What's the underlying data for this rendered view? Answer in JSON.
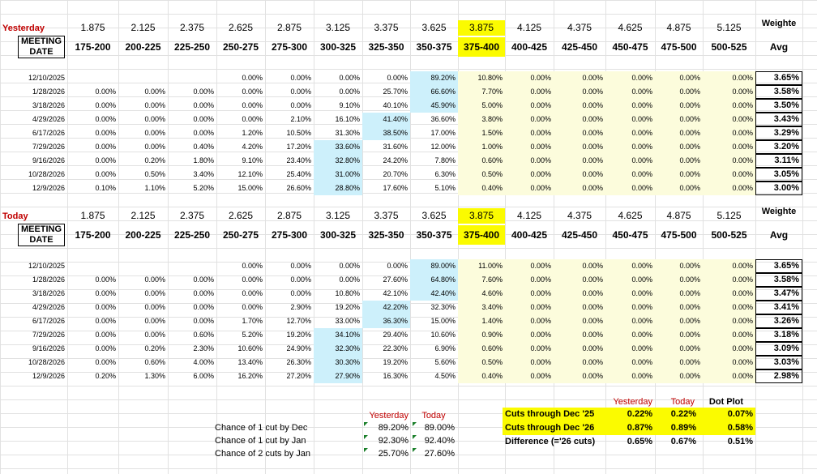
{
  "rates": [
    "1.875",
    "2.125",
    "2.375",
    "2.625",
    "2.875",
    "3.125",
    "3.375",
    "3.625",
    "3.875",
    "4.125",
    "4.375",
    "4.625",
    "4.875",
    "5.125"
  ],
  "ranges": [
    "175-200",
    "200-225",
    "225-250",
    "250-275",
    "275-300",
    "300-325",
    "325-350",
    "350-375",
    "375-400",
    "400-425",
    "425-450",
    "450-475",
    "475-500",
    "500-525"
  ],
  "header": {
    "meeting1": "MEETING",
    "meeting2": "DATE",
    "weight1": "Weighte",
    "weight2": "Avg"
  },
  "colors": {
    "yellow": "#fbfb00",
    "blue": "#cdf0fb",
    "cream": "#fcfcdc",
    "red": "#c00000"
  },
  "sections": [
    {
      "label": "Yesterday",
      "rows": [
        {
          "date": "12/10/2025",
          "vals": [
            "",
            "",
            "",
            "0.00%",
            "0.00%",
            "0.00%",
            "0.00%",
            "89.20%",
            "10.80%",
            "0.00%",
            "0.00%",
            "0.00%",
            "0.00%",
            "0.00%"
          ],
          "avg": "3.65%",
          "blue": 7
        },
        {
          "date": "1/28/2026",
          "vals": [
            "0.00%",
            "0.00%",
            "0.00%",
            "0.00%",
            "0.00%",
            "0.00%",
            "25.70%",
            "66.60%",
            "7.70%",
            "0.00%",
            "0.00%",
            "0.00%",
            "0.00%",
            "0.00%"
          ],
          "avg": "3.58%",
          "blue": 7
        },
        {
          "date": "3/18/2026",
          "vals": [
            "0.00%",
            "0.00%",
            "0.00%",
            "0.00%",
            "0.00%",
            "9.10%",
            "40.10%",
            "45.90%",
            "5.00%",
            "0.00%",
            "0.00%",
            "0.00%",
            "0.00%",
            "0.00%"
          ],
          "avg": "3.50%",
          "blue": 7
        },
        {
          "date": "4/29/2026",
          "vals": [
            "0.00%",
            "0.00%",
            "0.00%",
            "0.00%",
            "2.10%",
            "16.10%",
            "41.40%",
            "36.60%",
            "3.80%",
            "0.00%",
            "0.00%",
            "0.00%",
            "0.00%",
            "0.00%"
          ],
          "avg": "3.43%",
          "blue": 6
        },
        {
          "date": "6/17/2026",
          "vals": [
            "0.00%",
            "0.00%",
            "0.00%",
            "1.20%",
            "10.50%",
            "31.30%",
            "38.50%",
            "17.00%",
            "1.50%",
            "0.00%",
            "0.00%",
            "0.00%",
            "0.00%",
            "0.00%"
          ],
          "avg": "3.29%",
          "blue": 6
        },
        {
          "date": "7/29/2026",
          "vals": [
            "0.00%",
            "0.00%",
            "0.40%",
            "4.20%",
            "17.20%",
            "33.60%",
            "31.60%",
            "12.00%",
            "1.00%",
            "0.00%",
            "0.00%",
            "0.00%",
            "0.00%",
            "0.00%"
          ],
          "avg": "3.20%",
          "blue": 5
        },
        {
          "date": "9/16/2026",
          "vals": [
            "0.00%",
            "0.20%",
            "1.80%",
            "9.10%",
            "23.40%",
            "32.80%",
            "24.20%",
            "7.80%",
            "0.60%",
            "0.00%",
            "0.00%",
            "0.00%",
            "0.00%",
            "0.00%"
          ],
          "avg": "3.11%",
          "blue": 5
        },
        {
          "date": "10/28/2026",
          "vals": [
            "0.00%",
            "0.50%",
            "3.40%",
            "12.10%",
            "25.40%",
            "31.00%",
            "20.70%",
            "6.30%",
            "0.50%",
            "0.00%",
            "0.00%",
            "0.00%",
            "0.00%",
            "0.00%"
          ],
          "avg": "3.05%",
          "blue": 5
        },
        {
          "date": "12/9/2026",
          "vals": [
            "0.10%",
            "1.10%",
            "5.20%",
            "15.00%",
            "26.60%",
            "28.80%",
            "17.60%",
            "5.10%",
            "0.40%",
            "0.00%",
            "0.00%",
            "0.00%",
            "0.00%",
            "0.00%"
          ],
          "avg": "3.00%",
          "blue": 5
        }
      ]
    },
    {
      "label": "Today",
      "rows": [
        {
          "date": "12/10/2025",
          "vals": [
            "",
            "",
            "",
            "0.00%",
            "0.00%",
            "0.00%",
            "0.00%",
            "89.00%",
            "11.00%",
            "0.00%",
            "0.00%",
            "0.00%",
            "0.00%",
            "0.00%"
          ],
          "avg": "3.65%",
          "blue": 7
        },
        {
          "date": "1/28/2026",
          "vals": [
            "0.00%",
            "0.00%",
            "0.00%",
            "0.00%",
            "0.00%",
            "0.00%",
            "27.60%",
            "64.80%",
            "7.60%",
            "0.00%",
            "0.00%",
            "0.00%",
            "0.00%",
            "0.00%"
          ],
          "avg": "3.58%",
          "blue": 7
        },
        {
          "date": "3/18/2026",
          "vals": [
            "0.00%",
            "0.00%",
            "0.00%",
            "0.00%",
            "0.00%",
            "10.80%",
            "42.10%",
            "42.40%",
            "4.60%",
            "0.00%",
            "0.00%",
            "0.00%",
            "0.00%",
            "0.00%"
          ],
          "avg": "3.47%",
          "blue": 7
        },
        {
          "date": "4/29/2026",
          "vals": [
            "0.00%",
            "0.00%",
            "0.00%",
            "0.00%",
            "2.90%",
            "19.20%",
            "42.20%",
            "32.30%",
            "3.40%",
            "0.00%",
            "0.00%",
            "0.00%",
            "0.00%",
            "0.00%"
          ],
          "avg": "3.41%",
          "blue": 6
        },
        {
          "date": "6/17/2026",
          "vals": [
            "0.00%",
            "0.00%",
            "0.00%",
            "1.70%",
            "12.70%",
            "33.00%",
            "36.30%",
            "15.00%",
            "1.40%",
            "0.00%",
            "0.00%",
            "0.00%",
            "0.00%",
            "0.00%"
          ],
          "avg": "3.26%",
          "blue": 6
        },
        {
          "date": "7/29/2026",
          "vals": [
            "0.00%",
            "0.00%",
            "0.60%",
            "5.20%",
            "19.20%",
            "34.10%",
            "29.40%",
            "10.60%",
            "0.90%",
            "0.00%",
            "0.00%",
            "0.00%",
            "0.00%",
            "0.00%"
          ],
          "avg": "3.18%",
          "blue": 5
        },
        {
          "date": "9/16/2026",
          "vals": [
            "0.00%",
            "0.20%",
            "2.30%",
            "10.60%",
            "24.90%",
            "32.30%",
            "22.30%",
            "6.90%",
            "0.60%",
            "0.00%",
            "0.00%",
            "0.00%",
            "0.00%",
            "0.00%"
          ],
          "avg": "3.09%",
          "blue": 5
        },
        {
          "date": "10/28/2026",
          "vals": [
            "0.00%",
            "0.60%",
            "4.00%",
            "13.40%",
            "26.30%",
            "30.30%",
            "19.20%",
            "5.60%",
            "0.50%",
            "0.00%",
            "0.00%",
            "0.00%",
            "0.00%",
            "0.00%"
          ],
          "avg": "3.03%",
          "blue": 5
        },
        {
          "date": "12/9/2026",
          "vals": [
            "0.20%",
            "1.30%",
            "6.00%",
            "16.20%",
            "27.20%",
            "27.90%",
            "16.30%",
            "4.50%",
            "0.40%",
            "0.00%",
            "0.00%",
            "0.00%",
            "0.00%",
            "0.00%"
          ],
          "avg": "2.98%",
          "blue": 5
        }
      ]
    }
  ],
  "chance": {
    "yesterday_label": "Yesterday",
    "today_label": "Today",
    "rows": [
      {
        "label": "Chance of 1 cut by Dec",
        "yesterday": "89.20%",
        "today": "89.00%"
      },
      {
        "label": "Chance of 1 cut by Jan",
        "yesterday": "92.30%",
        "today": "92.40%"
      },
      {
        "label": "Chance of 2 cuts by Jan",
        "yesterday": "25.70%",
        "today": "27.60%"
      }
    ]
  },
  "cuts": {
    "yesterday_label": "Yesterday",
    "today_label": "Today",
    "dot_label": "Dot Plot",
    "rows": [
      {
        "label": "Cuts through Dec '25",
        "yesterday": "0.22%",
        "today": "0.22%",
        "dot": "0.07%",
        "highlight": true
      },
      {
        "label": "Cuts through Dec '26",
        "yesterday": "0.87%",
        "today": "0.89%",
        "dot": "0.58%",
        "highlight": true
      },
      {
        "label": "Difference (='26 cuts)",
        "yesterday": "0.65%",
        "today": "0.67%",
        "dot": "0.51%",
        "highlight": false
      }
    ]
  }
}
